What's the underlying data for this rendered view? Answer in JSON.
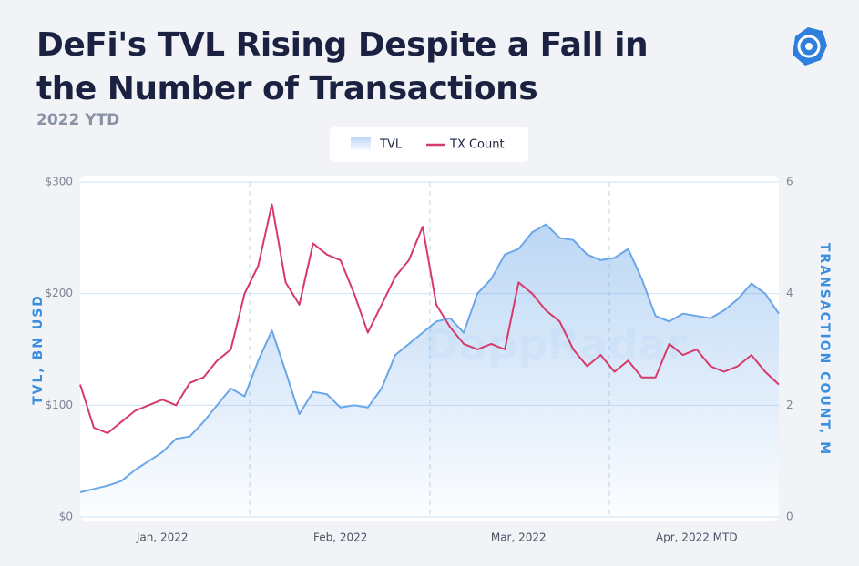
{
  "chart_data": {
    "type": "line",
    "title": "DeFi's TVL Rising Despite a Fall in the Number of Transactions",
    "subtitle": "2022 YTD",
    "watermark": "DappRadar",
    "y_label": "TVL, BN USD",
    "y2_label": "TRANSACTION COUNT, M",
    "categories": [
      null,
      null,
      null,
      null,
      null,
      null,
      "Jan, 2022",
      null,
      null,
      null,
      null,
      null,
      null,
      null,
      null,
      null,
      null,
      null,
      null,
      "Feb, 2022",
      null,
      null,
      null,
      null,
      null,
      null,
      null,
      null,
      null,
      null,
      null,
      null,
      "Mar, 2022",
      null,
      null,
      null,
      null,
      null,
      null,
      null,
      null,
      null,
      null,
      null,
      null,
      "Apr, 2022 MTD",
      null,
      null,
      null,
      null,
      null,
      null
    ],
    "series": [
      {
        "name": "TVL",
        "color": "#6aa6e8",
        "area": true,
        "values": [
          22,
          25,
          28,
          32,
          42,
          50,
          58,
          70,
          72,
          85,
          100,
          115,
          108,
          140,
          167,
          130,
          92,
          112,
          110,
          98,
          100,
          98,
          115,
          145,
          155,
          165,
          175,
          178,
          165,
          200,
          213,
          235,
          240,
          255,
          262,
          250,
          248,
          235,
          230,
          232,
          240,
          213,
          180,
          175,
          182,
          180,
          178,
          185,
          195,
          209,
          200,
          182
        ]
      },
      {
        "name": "TX Count",
        "color": "#d63a6a",
        "axis": "y2",
        "values": [
          2.37,
          1.6,
          1.5,
          1.7,
          1.9,
          2.0,
          2.1,
          2.0,
          2.4,
          2.5,
          2.8,
          3.0,
          4.0,
          4.5,
          5.6,
          4.2,
          3.8,
          4.9,
          4.7,
          4.6,
          4.0,
          3.3,
          3.8,
          4.3,
          4.6,
          5.2,
          3.8,
          3.4,
          3.1,
          3.0,
          3.1,
          3.0,
          4.2,
          4.0,
          3.7,
          3.5,
          3.0,
          2.7,
          2.9,
          2.6,
          2.8,
          2.5,
          2.5,
          3.1,
          2.9,
          3.0,
          2.7,
          2.6,
          2.7,
          2.9,
          2.6,
          2.37
        ]
      }
    ],
    "ylim": [
      0,
      300
    ],
    "yticks": [
      {
        "value": 0,
        "label": "$0"
      },
      {
        "value": 100,
        "label": "$100"
      },
      {
        "value": 200,
        "label": "$200"
      },
      {
        "value": 300,
        "label": "$300"
      }
    ],
    "y2lim": [
      0,
      6
    ],
    "y2ticks": [
      0,
      2,
      4,
      6
    ],
    "grid": true
  }
}
